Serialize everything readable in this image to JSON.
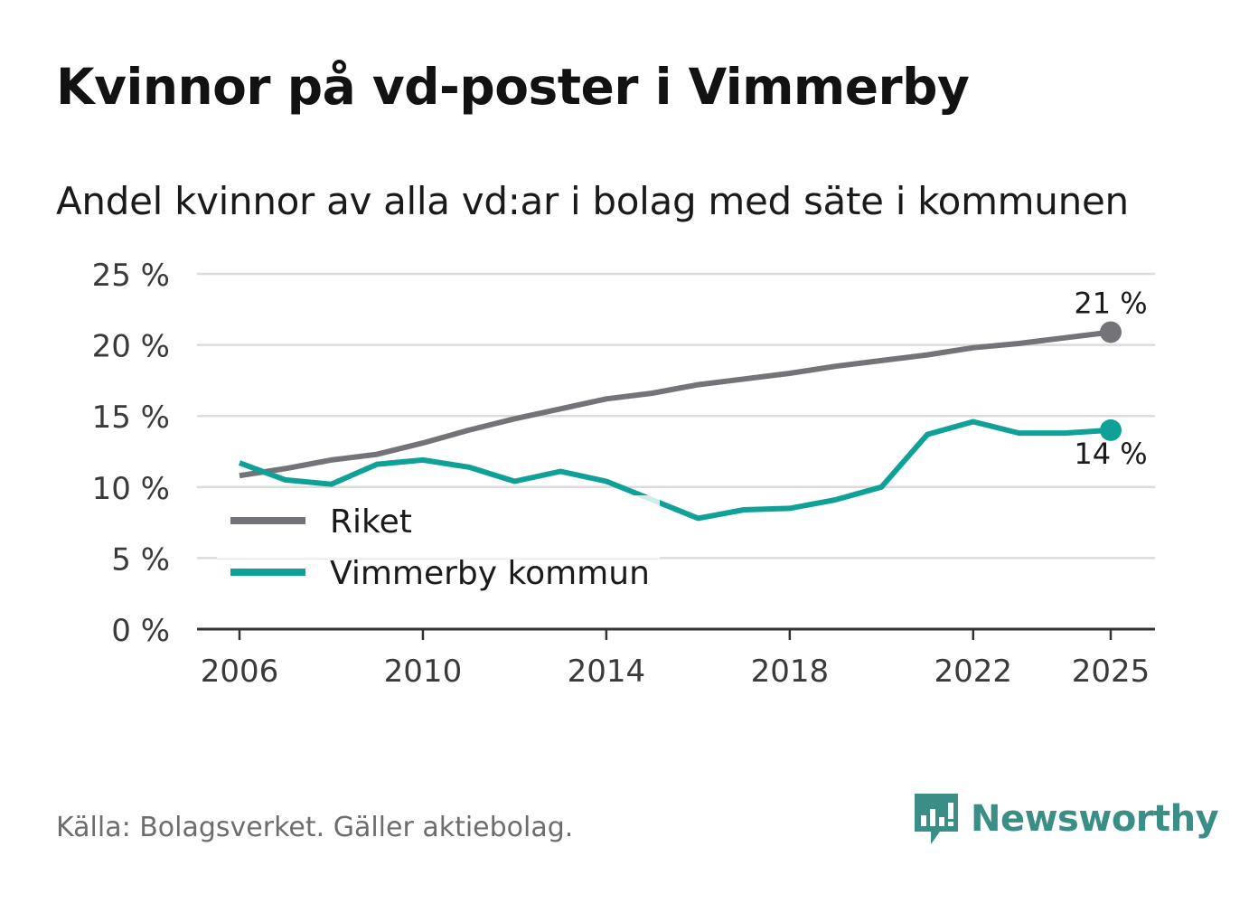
{
  "title": "Kvinnor på vd-poster i Vimmerby",
  "subtitle": "Andel kvinnor av alla vd:ar i bolag med säte i kommunen",
  "source": "Källa: Bolagsverket. Gäller aktiebolag.",
  "brand": "Newsworthy",
  "colors": {
    "riket": "#737378",
    "kommun": "#0fa098",
    "grid": "#dcdcdc",
    "axis": "#333333"
  },
  "chart_data": {
    "type": "line",
    "x": [
      2006,
      2007,
      2008,
      2009,
      2010,
      2011,
      2012,
      2013,
      2014,
      2015,
      2016,
      2017,
      2018,
      2019,
      2020,
      2021,
      2022,
      2023,
      2024,
      2025
    ],
    "series": [
      {
        "name": "Riket",
        "color": "#737378",
        "values": [
          10.8,
          11.3,
          11.9,
          12.3,
          13.1,
          14.0,
          14.8,
          15.5,
          16.2,
          16.6,
          17.2,
          17.6,
          18.0,
          18.5,
          18.9,
          19.3,
          19.8,
          20.1,
          20.5,
          20.9
        ]
      },
      {
        "name": "Vimmerby kommun",
        "color": "#0fa098",
        "values": [
          11.7,
          10.5,
          10.2,
          11.6,
          11.9,
          11.4,
          10.4,
          11.1,
          10.4,
          9.1,
          7.8,
          8.4,
          8.5,
          9.1,
          10.0,
          13.7,
          14.6,
          13.8,
          13.8,
          14.0
        ]
      }
    ],
    "end_labels": {
      "Riket": "21 %",
      "Vimmerby kommun": "14 %"
    },
    "yticks": [
      0,
      5,
      10,
      15,
      20,
      25
    ],
    "ytick_labels": [
      "0 %",
      "5 %",
      "10 %",
      "15 %",
      "20 %",
      "25 %"
    ],
    "xticks": [
      2006,
      2010,
      2014,
      2018,
      2022,
      2025
    ],
    "xtick_labels": [
      "2006",
      "2010",
      "2014",
      "2018",
      "2022",
      "2025"
    ],
    "ylim": [
      0,
      25
    ],
    "xlim": [
      2006,
      2025
    ],
    "legend": [
      "Riket",
      "Vimmerby kommun"
    ],
    "legend_position": "bottom-left",
    "grid": true
  }
}
